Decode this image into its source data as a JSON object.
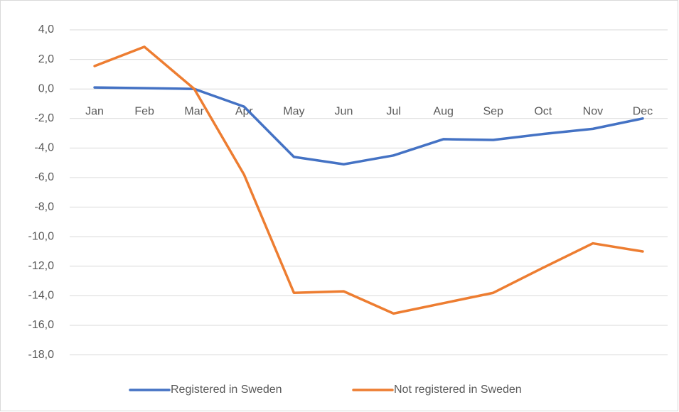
{
  "chart_data": {
    "type": "line",
    "categories": [
      "Jan",
      "Feb",
      "Mar",
      "Apr",
      "May",
      "Jun",
      "Jul",
      "Aug",
      "Sep",
      "Oct",
      "Nov",
      "Dec"
    ],
    "series": [
      {
        "name": "Registered in Sweden",
        "color": "#4472c4",
        "values": [
          0.1,
          0.05,
          0.0,
          -1.2,
          -4.6,
          -5.1,
          -4.5,
          -3.4,
          -3.45,
          -3.05,
          -2.7,
          -2.0
        ]
      },
      {
        "name": "Not registered in Sweden",
        "color": "#ed7d31",
        "values": [
          1.55,
          2.85,
          0.0,
          -5.8,
          -13.8,
          -13.7,
          -15.2,
          -14.5,
          -13.8,
          -12.1,
          -10.45,
          -11.0
        ]
      }
    ],
    "ylim": [
      4,
      -18
    ],
    "yticks": [
      {
        "value": 4,
        "label": "4,0"
      },
      {
        "value": 2,
        "label": "2,0"
      },
      {
        "value": 0,
        "label": "0,0"
      },
      {
        "value": -2,
        "label": "-2,0"
      },
      {
        "value": -4,
        "label": "-4,0"
      },
      {
        "value": -6,
        "label": "-6,0"
      },
      {
        "value": -8,
        "label": "-8,0"
      },
      {
        "value": -10,
        "label": "-10,0"
      },
      {
        "value": -12,
        "label": "-12,0"
      },
      {
        "value": -14,
        "label": "-14,0"
      },
      {
        "value": -16,
        "label": "-16,0"
      },
      {
        "value": -18,
        "label": "-18,0"
      }
    ],
    "grid": true,
    "legend": "bottom"
  }
}
